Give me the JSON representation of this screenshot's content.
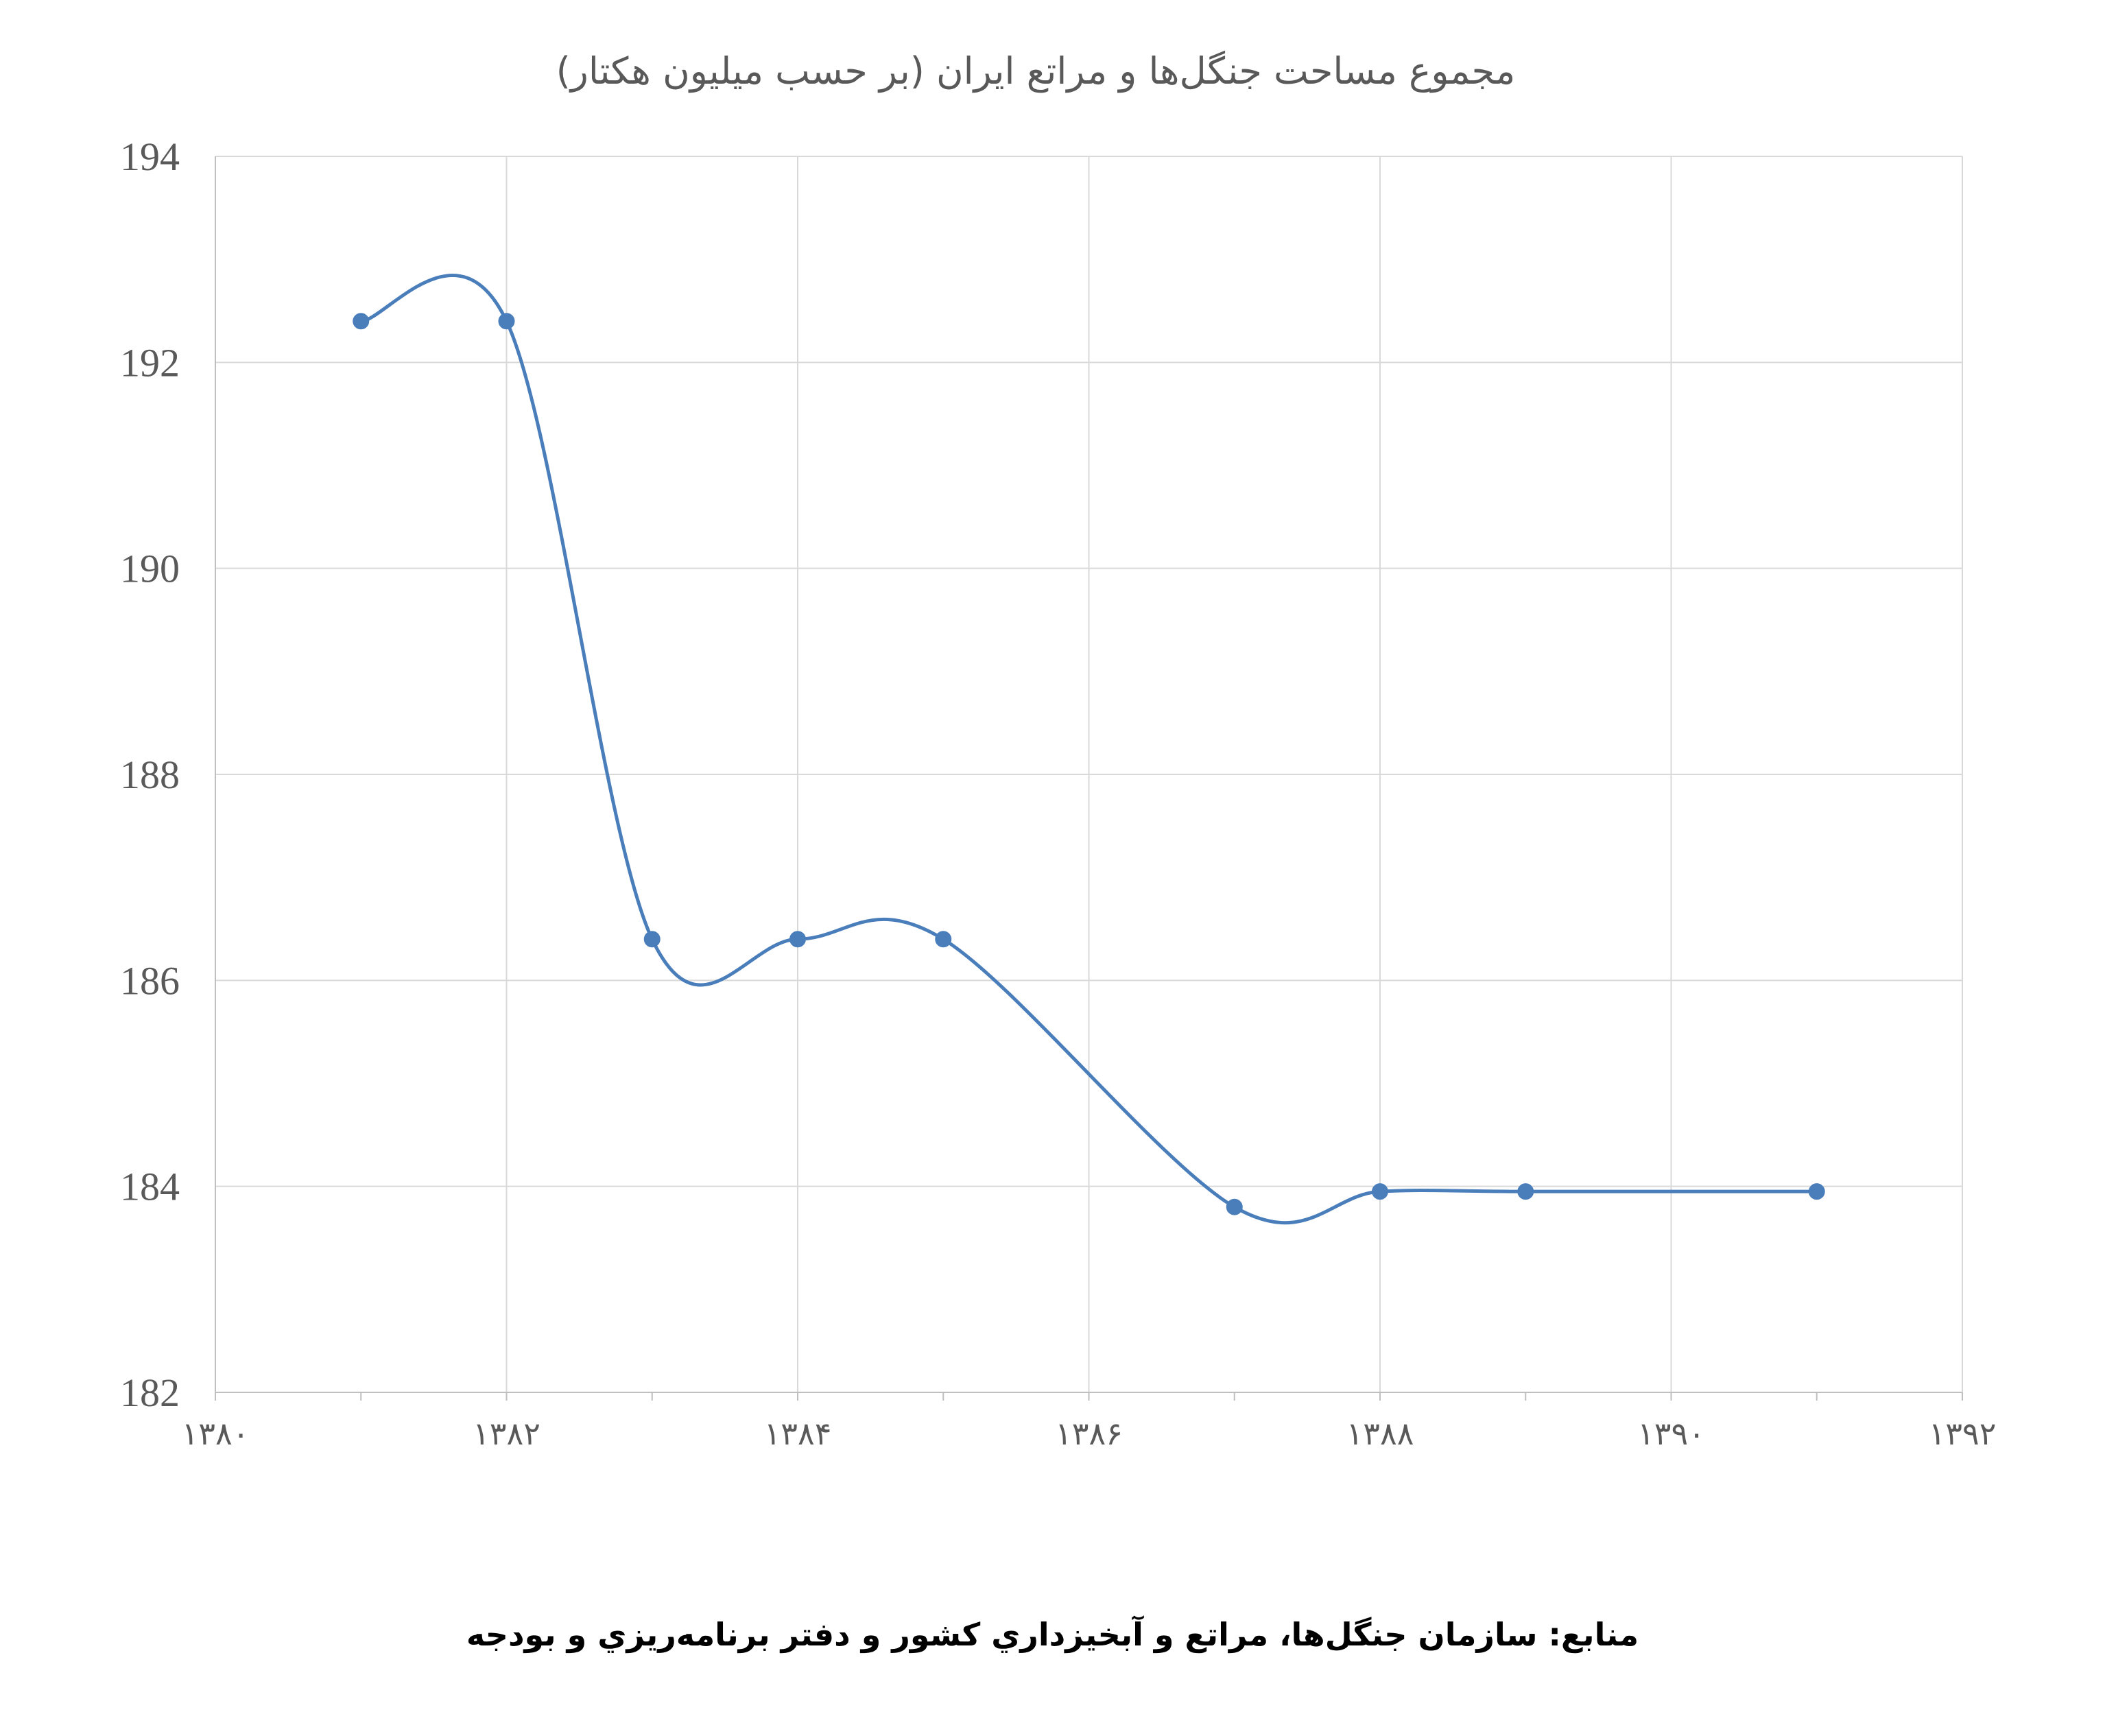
{
  "chart_data": {
    "type": "scatter",
    "mode": "lines+markers",
    "smooth": true,
    "title": "مجموع مساحت جنگل‌ها و مراتع ایران (بر حسب میلیون هکتار)",
    "xlabel": "",
    "ylabel": "",
    "xlim": [
      1380,
      1392
    ],
    "ylim": [
      182,
      194
    ],
    "x_ticks": [
      {
        "value": 1380,
        "label": "۱۳۸۰"
      },
      {
        "value": 1382,
        "label": "۱۳۸۲"
      },
      {
        "value": 1384,
        "label": "۱۳۸۴"
      },
      {
        "value": 1386,
        "label": "۱۳۸۶"
      },
      {
        "value": 1388,
        "label": "۱۳۸۸"
      },
      {
        "value": 1390,
        "label": "۱۳۹۰"
      },
      {
        "value": 1392,
        "label": "۱۳۹۲"
      }
    ],
    "y_ticks": [
      {
        "value": 182,
        "label": "182"
      },
      {
        "value": 184,
        "label": "184"
      },
      {
        "value": 186,
        "label": "186"
      },
      {
        "value": 188,
        "label": "188"
      },
      {
        "value": 190,
        "label": "190"
      },
      {
        "value": 192,
        "label": "192"
      },
      {
        "value": 194,
        "label": "194"
      }
    ],
    "grid": true,
    "legend": "none",
    "series": [
      {
        "x": [
          1381,
          1382,
          1383,
          1384,
          1385,
          1387,
          1388,
          1389,
          1391
        ],
        "y": [
          192.4,
          192.4,
          186.4,
          186.4,
          186.4,
          183.8,
          183.95,
          183.95,
          183.95
        ]
      }
    ]
  },
  "source_note": "منابع: سازمان جنگل‌ها، مراتع و آبخیزداري کشور و دفتر برنامه‌ریزي و بودجه",
  "colors": {
    "line": "#4a7ebb",
    "marker": "#4a7ebb",
    "grid": "#d9d9d9",
    "axis": "#bfbfbf",
    "text": "#595959"
  }
}
